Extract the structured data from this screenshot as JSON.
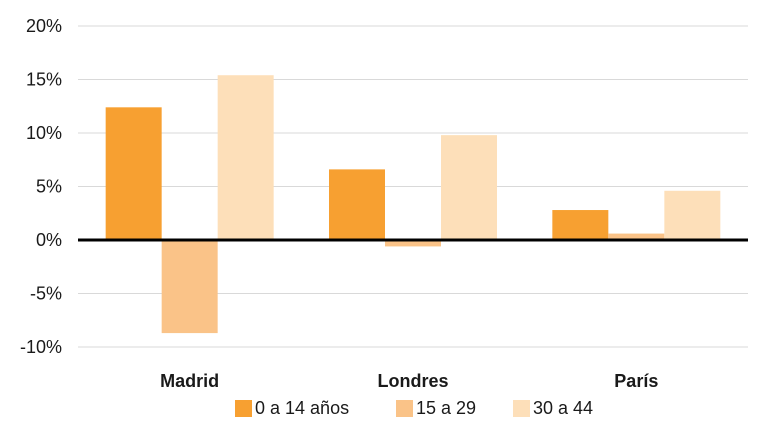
{
  "chart_data": {
    "type": "bar",
    "categories": [
      "Madrid",
      "Londres",
      "París"
    ],
    "series": [
      {
        "name": "0 a 14 años",
        "values": [
          12.4,
          6.6,
          2.8
        ],
        "color": "#f7a031"
      },
      {
        "name": "15 a 29",
        "values": [
          -8.7,
          -0.6,
          0.6
        ],
        "color": "#fac388"
      },
      {
        "name": "30 a 44",
        "values": [
          15.4,
          9.8,
          4.6
        ],
        "color": "#fddfb9"
      }
    ],
    "ylim": [
      -10,
      20
    ],
    "yticks": [
      20,
      15,
      10,
      5,
      0,
      -5,
      -10
    ],
    "ytick_labels": [
      "20%",
      "15%",
      "10%",
      "5%",
      "0%",
      "-5%",
      "-10%"
    ],
    "grid": true,
    "legend": "bottom"
  }
}
